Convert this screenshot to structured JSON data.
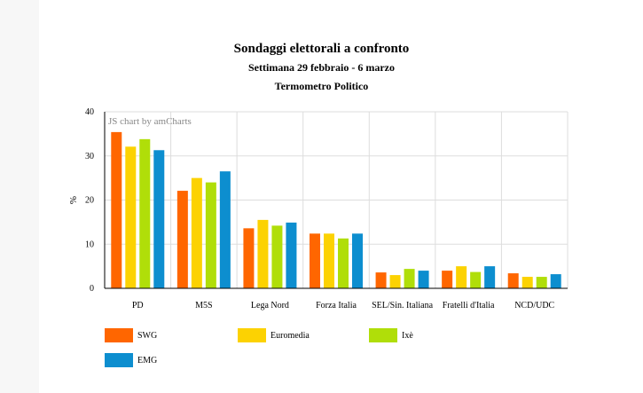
{
  "page": {
    "title": "Sondaggi elettorali a confronto",
    "subtitle": "Settimana 29 febbraio - 6 marzo",
    "source": "Termometro Politico",
    "watermark": "JS chart by amCharts"
  },
  "chart_data": {
    "type": "bar",
    "title": "Sondaggi elettorali a confronto",
    "subtitle": "Settimana 29 febbraio - 6 marzo",
    "xlabel": "",
    "ylabel": "%",
    "ylim": [
      0,
      40
    ],
    "yticks": [
      0,
      10,
      20,
      30,
      40
    ],
    "grid": true,
    "legend_position": "bottom",
    "categories": [
      "PD",
      "M5S",
      "Lega Nord",
      "Forza Italia",
      "SEL/Sin. Italiana",
      "Fratelli d'Italia",
      "NCD/UDC"
    ],
    "series": [
      {
        "name": "SWG",
        "color": "#ff6600",
        "values": [
          35.4,
          22.1,
          13.6,
          12.4,
          3.6,
          4.0,
          3.4
        ]
      },
      {
        "name": "Euromedia",
        "color": "#fcd202",
        "values": [
          32.1,
          25.0,
          15.5,
          12.4,
          3.0,
          5.0,
          2.6
        ]
      },
      {
        "name": "Ixè",
        "color": "#b0de09",
        "values": [
          33.8,
          24.0,
          14.2,
          11.3,
          4.4,
          3.7,
          2.6
        ]
      },
      {
        "name": "EMG",
        "color": "#0d8ecf",
        "values": [
          31.3,
          26.5,
          14.9,
          12.4,
          4.0,
          5.0,
          3.2
        ]
      }
    ]
  }
}
